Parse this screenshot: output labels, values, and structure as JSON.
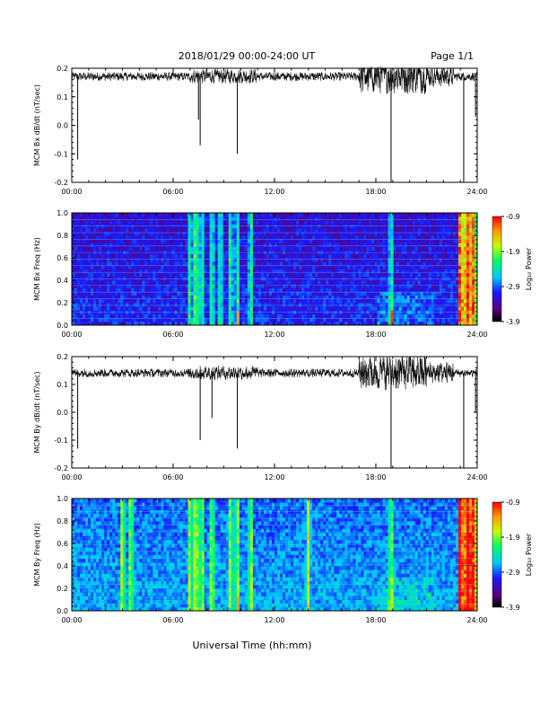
{
  "header": {
    "date_range": "2018/01/29  00:00-24:00 UT",
    "page": "Page 1/1"
  },
  "footer": {
    "xlabel": "Universal Time (hh:mm)"
  },
  "colors": {
    "trace": "#000000",
    "spectrogram_background": "#1a1aa0"
  },
  "chart_data": [
    {
      "type": "line",
      "ylabel": "MCM Bx dB/dt (nT/sec)",
      "xlim": [
        0,
        24
      ],
      "ylim": [
        -0.2,
        0.2
      ],
      "x_ticks": [
        "00:00",
        "06:00",
        "12:00",
        "18:00",
        "24:00"
      ],
      "y_ticks": [
        "0.2",
        "0.1",
        "0.0",
        "-0.1",
        "-0.2"
      ],
      "baseline": 0.17,
      "spikes": [
        {
          "x": 0.35,
          "y": -0.12
        },
        {
          "x": 7.5,
          "y": 0.02
        },
        {
          "x": 7.6,
          "y": -0.07
        },
        {
          "x": 9.8,
          "y": -0.1
        },
        {
          "x": 18.9,
          "y": -0.2
        },
        {
          "x": 23.2,
          "y": -0.2
        },
        {
          "x": 23.9,
          "y": 0.03
        }
      ]
    },
    {
      "type": "heatmap",
      "ylabel": "MCM Bx Freq (Hz)",
      "xlim": [
        0,
        24
      ],
      "ylim": [
        0,
        1.0
      ],
      "x_ticks": [
        "00:00",
        "06:00",
        "12:00",
        "18:00",
        "24:00"
      ],
      "y_ticks": [
        "1.0",
        "0.8",
        "0.6",
        "0.4",
        "0.2",
        "0.0"
      ],
      "colorbar": {
        "label": "Log₁₀ Power",
        "ticks": [
          "-0.9",
          "-1.9",
          "-2.9",
          "-3.9"
        ],
        "range": [
          -3.9,
          -0.9
        ]
      },
      "bright_times": [
        7.0,
        7.3,
        7.5,
        7.7,
        8.3,
        8.8,
        9.4,
        9.8,
        10.6,
        18.9,
        23.0,
        23.4,
        23.7
      ]
    },
    {
      "type": "line",
      "ylabel": "MCM By dB/dt (nT/sec)",
      "xlim": [
        0,
        24
      ],
      "ylim": [
        -0.2,
        0.2
      ],
      "x_ticks": [
        "00:00",
        "06:00",
        "12:00",
        "18:00",
        "24:00"
      ],
      "y_ticks": [
        "0.2",
        "0.1",
        "0.0",
        "-0.1",
        "-0.2"
      ],
      "baseline": 0.14,
      "spikes": [
        {
          "x": 0.35,
          "y": -0.13
        },
        {
          "x": 7.6,
          "y": -0.1
        },
        {
          "x": 8.3,
          "y": -0.02
        },
        {
          "x": 9.8,
          "y": -0.13
        },
        {
          "x": 18.9,
          "y": -0.2
        },
        {
          "x": 23.2,
          "y": -0.2
        },
        {
          "x": 23.9,
          "y": 0.0
        }
      ]
    },
    {
      "type": "heatmap",
      "ylabel": "MCM By Freq (Hz)",
      "xlim": [
        0,
        24
      ],
      "ylim": [
        0,
        1.0
      ],
      "x_ticks": [
        "00:00",
        "06:00",
        "12:00",
        "18:00",
        "24:00"
      ],
      "y_ticks": [
        "1.0",
        "0.8",
        "0.6",
        "0.4",
        "0.2",
        "0.0"
      ],
      "colorbar": {
        "label": "Log₁₀ Power",
        "ticks": [
          "-0.9",
          "-1.9",
          "-2.9",
          "-3.9"
        ],
        "range": [
          -3.9,
          -0.9
        ]
      },
      "bright_times": [
        3.0,
        3.5,
        7.0,
        7.3,
        7.5,
        7.7,
        8.3,
        9.4,
        9.8,
        10.6,
        14.0,
        18.9,
        23.0,
        23.4,
        23.7
      ]
    }
  ]
}
